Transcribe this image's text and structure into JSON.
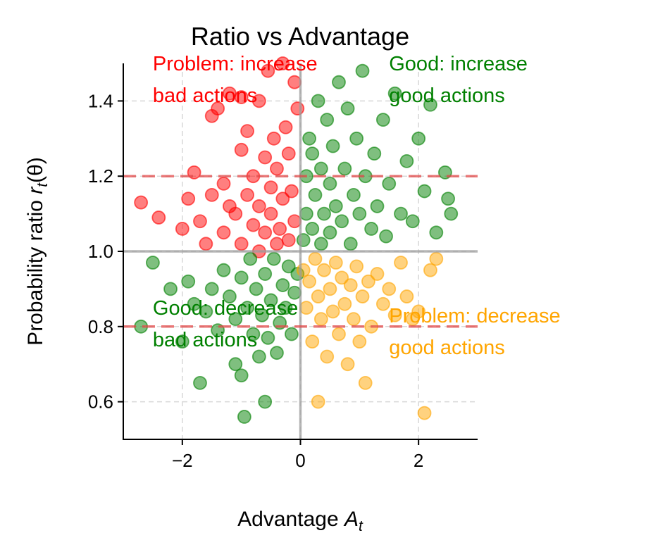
{
  "chart_data": {
    "type": "scatter",
    "title": "Ratio vs Advantage",
    "xlabel_text": "Advantage ",
    "xlabel_math": "A",
    "xlabel_sub": "t",
    "ylabel_text": "Probability ratio ",
    "ylabel_math": "r",
    "ylabel_sub": "t",
    "ylabel_arg": "(θ)",
    "xlim": [
      -3,
      3
    ],
    "ylim": [
      0.5,
      1.5
    ],
    "xticks": [
      -2,
      0,
      2
    ],
    "xtick_labels": [
      "−2",
      "0",
      "2"
    ],
    "yticks": [
      0.6,
      0.8,
      1.0,
      1.2,
      1.4
    ],
    "ytick_labels": [
      "0.6",
      "0.8",
      "1.0",
      "1.2",
      "1.4"
    ],
    "grid": true,
    "reference_lines": {
      "x_zero": 0,
      "y_one": 1.0,
      "clip_upper": 1.2,
      "clip_lower": 0.8
    },
    "colors": {
      "red": "#ff0000",
      "green": "#008000",
      "orange": "#ffa500",
      "clip_line": "#e24a4a",
      "zero_line": "#9e9e9e"
    },
    "annotations": [
      {
        "name": "annotation-problem-increase",
        "lines": [
          "Problem: increase",
          "bad actions"
        ],
        "color": "#ff0000",
        "x": -2.5,
        "y": 1.44
      },
      {
        "name": "annotation-good-increase",
        "lines": [
          "Good: increase",
          "good actions"
        ],
        "color": "#008000",
        "x": 1.5,
        "y": 1.44
      },
      {
        "name": "annotation-good-decrease",
        "lines": [
          "Good: decrease",
          "bad actions"
        ],
        "color": "#008000",
        "x": -2.5,
        "y": 0.79
      },
      {
        "name": "annotation-problem-decrease",
        "lines": [
          "Problem: decrease",
          "good actions"
        ],
        "color": "#ffa500",
        "x": 1.5,
        "y": 0.77
      }
    ],
    "series": [
      {
        "name": "Problem: increase bad actions",
        "color": "#ff0000",
        "points": [
          [
            -2.7,
            1.13
          ],
          [
            -2.4,
            1.09
          ],
          [
            -2.0,
            1.06
          ],
          [
            -1.9,
            1.14
          ],
          [
            -1.8,
            1.21
          ],
          [
            -1.7,
            1.08
          ],
          [
            -1.6,
            1.02
          ],
          [
            -1.5,
            1.15
          ],
          [
            -1.5,
            1.36
          ],
          [
            -1.4,
            1.38
          ],
          [
            -1.3,
            1.18
          ],
          [
            -1.3,
            1.05
          ],
          [
            -1.2,
            1.12
          ],
          [
            -1.2,
            1.42
          ],
          [
            -1.1,
            1.1
          ],
          [
            -1.0,
            1.02
          ],
          [
            -1.0,
            1.27
          ],
          [
            -1.0,
            1.41
          ],
          [
            -0.9,
            1.15
          ],
          [
            -0.9,
            1.32
          ],
          [
            -0.8,
            1.07
          ],
          [
            -0.8,
            1.2
          ],
          [
            -0.7,
            1.0
          ],
          [
            -0.7,
            1.12
          ],
          [
            -0.7,
            1.4
          ],
          [
            -0.6,
            1.05
          ],
          [
            -0.6,
            1.25
          ],
          [
            -0.55,
            1.48
          ],
          [
            -0.5,
            1.1
          ],
          [
            -0.5,
            1.17
          ],
          [
            -0.45,
            1.3
          ],
          [
            -0.4,
            1.02
          ],
          [
            -0.4,
            1.22
          ],
          [
            -0.35,
            1.06
          ],
          [
            -0.3,
            1.14
          ],
          [
            -0.3,
            1.5
          ],
          [
            -0.25,
            1.33
          ],
          [
            -0.2,
            1.03
          ],
          [
            -0.2,
            1.26
          ],
          [
            -0.15,
            1.16
          ],
          [
            -0.1,
            1.08
          ],
          [
            -0.1,
            1.45
          ],
          [
            -0.05,
            1.38
          ]
        ]
      },
      {
        "name": "Good: increase good actions",
        "color": "#008000",
        "points": [
          [
            0.05,
            1.03
          ],
          [
            0.1,
            1.1
          ],
          [
            0.1,
            1.2
          ],
          [
            0.15,
            1.3
          ],
          [
            0.2,
            1.06
          ],
          [
            0.2,
            1.26
          ],
          [
            0.25,
            1.15
          ],
          [
            0.3,
            1.4
          ],
          [
            0.35,
            1.02
          ],
          [
            0.35,
            1.22
          ],
          [
            0.4,
            1.1
          ],
          [
            0.45,
            1.35
          ],
          [
            0.5,
            1.05
          ],
          [
            0.5,
            1.18
          ],
          [
            0.55,
            1.28
          ],
          [
            0.6,
            1.12
          ],
          [
            0.65,
            1.45
          ],
          [
            0.7,
            1.08
          ],
          [
            0.75,
            1.22
          ],
          [
            0.8,
            1.38
          ],
          [
            0.85,
            1.02
          ],
          [
            0.9,
            1.15
          ],
          [
            0.95,
            1.3
          ],
          [
            1.0,
            1.1
          ],
          [
            1.05,
            1.48
          ],
          [
            1.1,
            1.2
          ],
          [
            1.2,
            1.06
          ],
          [
            1.25,
            1.26
          ],
          [
            1.3,
            1.12
          ],
          [
            1.4,
            1.35
          ],
          [
            1.45,
            1.04
          ],
          [
            1.5,
            1.18
          ],
          [
            1.6,
            1.42
          ],
          [
            1.7,
            1.1
          ],
          [
            1.8,
            1.24
          ],
          [
            1.9,
            1.08
          ],
          [
            2.0,
            1.3
          ],
          [
            2.1,
            1.16
          ],
          [
            2.2,
            1.39
          ],
          [
            2.3,
            1.05
          ],
          [
            2.45,
            1.21
          ],
          [
            2.5,
            1.14
          ],
          [
            2.55,
            1.1
          ]
        ]
      },
      {
        "name": "Good: decrease bad actions",
        "color": "#008000",
        "points": [
          [
            -2.7,
            0.8
          ],
          [
            -2.5,
            0.97
          ],
          [
            -2.2,
            0.9
          ],
          [
            -2.0,
            0.76
          ],
          [
            -1.9,
            0.92
          ],
          [
            -1.8,
            0.86
          ],
          [
            -1.7,
            0.65
          ],
          [
            -1.6,
            0.84
          ],
          [
            -1.5,
            0.9
          ],
          [
            -1.4,
            0.79
          ],
          [
            -1.3,
            0.95
          ],
          [
            -1.2,
            0.88
          ],
          [
            -1.1,
            0.82
          ],
          [
            -1.1,
            0.7
          ],
          [
            -1.0,
            0.67
          ],
          [
            -1.0,
            0.93
          ],
          [
            -0.95,
            0.56
          ],
          [
            -0.9,
            0.85
          ],
          [
            -0.85,
            0.98
          ],
          [
            -0.8,
            0.78
          ],
          [
            -0.75,
            0.9
          ],
          [
            -0.7,
            0.72
          ],
          [
            -0.65,
            0.83
          ],
          [
            -0.6,
            0.94
          ],
          [
            -0.6,
            0.6
          ],
          [
            -0.55,
            0.77
          ],
          [
            -0.5,
            0.87
          ],
          [
            -0.45,
            0.98
          ],
          [
            -0.4,
            0.73
          ],
          [
            -0.35,
            0.81
          ],
          [
            -0.3,
            0.91
          ],
          [
            -0.25,
            0.85
          ],
          [
            -0.2,
            0.96
          ],
          [
            -0.15,
            0.78
          ],
          [
            -0.1,
            0.89
          ],
          [
            -0.05,
            0.94
          ]
        ]
      },
      {
        "name": "Problem: decrease good actions",
        "color": "#ffa500",
        "points": [
          [
            0.05,
            0.95
          ],
          [
            0.1,
            0.85
          ],
          [
            0.15,
            0.92
          ],
          [
            0.2,
            0.76
          ],
          [
            0.25,
            0.98
          ],
          [
            0.3,
            0.6
          ],
          [
            0.3,
            0.88
          ],
          [
            0.35,
            0.82
          ],
          [
            0.4,
            0.95
          ],
          [
            0.45,
            0.72
          ],
          [
            0.5,
            0.9
          ],
          [
            0.55,
            0.84
          ],
          [
            0.6,
            0.97
          ],
          [
            0.65,
            0.78
          ],
          [
            0.7,
            0.93
          ],
          [
            0.75,
            0.86
          ],
          [
            0.8,
            0.7
          ],
          [
            0.85,
            0.91
          ],
          [
            0.9,
            0.82
          ],
          [
            0.95,
            0.96
          ],
          [
            1.0,
            0.76
          ],
          [
            1.05,
            0.88
          ],
          [
            1.1,
            0.65
          ],
          [
            1.15,
            0.92
          ],
          [
            1.2,
            0.8
          ],
          [
            1.3,
            0.94
          ],
          [
            1.4,
            0.86
          ],
          [
            1.5,
            0.9
          ],
          [
            1.6,
            0.83
          ],
          [
            1.7,
            0.97
          ],
          [
            1.8,
            0.88
          ],
          [
            1.9,
            0.82
          ],
          [
            2.0,
            0.84
          ],
          [
            2.1,
            0.57
          ],
          [
            2.2,
            0.95
          ],
          [
            2.3,
            0.98
          ]
        ]
      }
    ]
  }
}
